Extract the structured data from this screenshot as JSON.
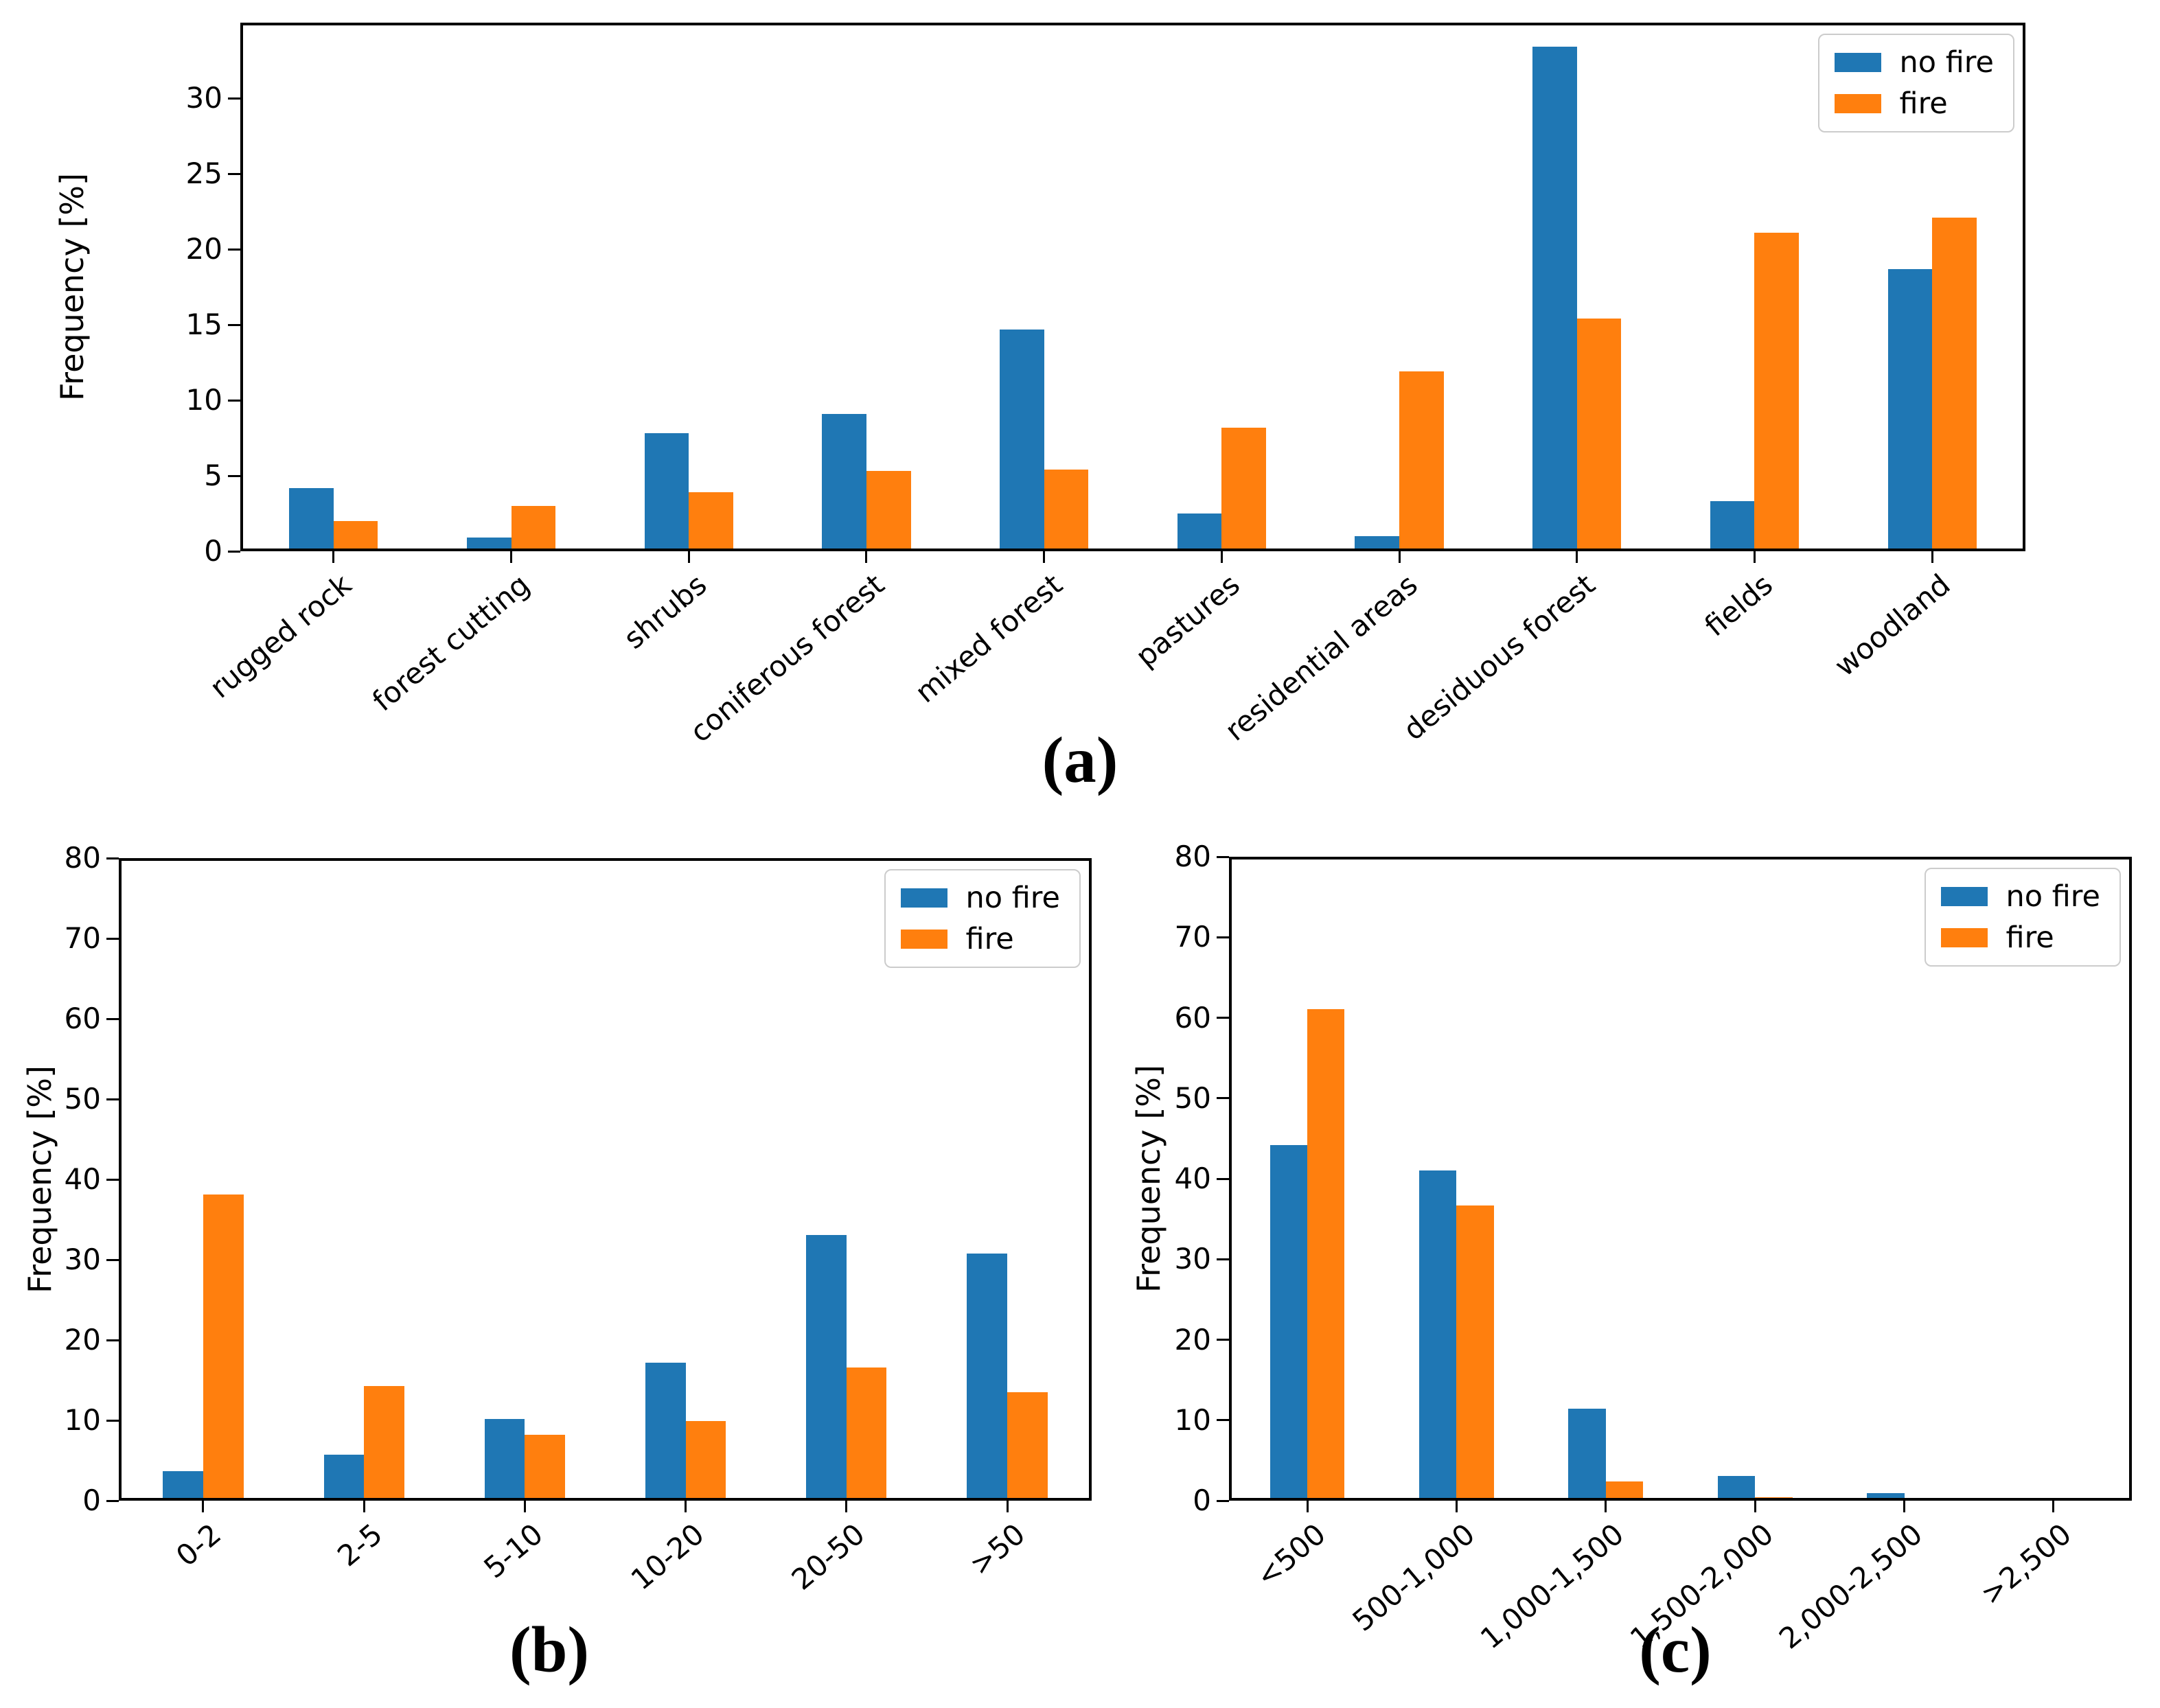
{
  "figure": {
    "background": "#ffffff",
    "colors": {
      "no_fire": "#1f77b4",
      "fire": "#ff7f0e"
    },
    "legend_labels": [
      "no fire",
      "fire"
    ]
  },
  "captions": {
    "a": "(a)",
    "b": "(b)",
    "c": "(c)"
  },
  "chart_data": [
    {
      "id": "a",
      "type": "bar",
      "title": "",
      "xlabel": "",
      "ylabel": "Frequency [%]",
      "ylim": [
        0,
        35
      ],
      "yticks": [
        0,
        5,
        10,
        15,
        20,
        25,
        30
      ],
      "grid": false,
      "legend_position": "top-right",
      "categories": [
        "rugged rock",
        "forest cutting",
        "shrubs",
        "coniferous forest",
        "mixed forest",
        "pastures",
        "residential areas",
        "desiduous forest",
        "fields",
        "woodland"
      ],
      "series": [
        {
          "name": "no fire",
          "color": "#1f77b4",
          "values": [
            4.2,
            0.9,
            7.8,
            9.1,
            14.7,
            2.5,
            1.0,
            33.4,
            3.3,
            18.7
          ]
        },
        {
          "name": "fire",
          "color": "#ff7f0e",
          "values": [
            2.0,
            3.0,
            3.9,
            5.3,
            5.4,
            8.2,
            11.9,
            15.4,
            21.1,
            22.1
          ]
        }
      ]
    },
    {
      "id": "b",
      "type": "bar",
      "title": "",
      "xlabel": "",
      "ylabel": "Frequency [%]",
      "ylim": [
        0,
        80
      ],
      "yticks": [
        0,
        10,
        20,
        30,
        40,
        50,
        60,
        70,
        80
      ],
      "grid": false,
      "legend_position": "top-right",
      "categories": [
        "0-2",
        "2-5",
        "5-10",
        "10-20",
        "20-50",
        ">50"
      ],
      "series": [
        {
          "name": "no fire",
          "color": "#1f77b4",
          "values": [
            3.7,
            5.7,
            10.2,
            17.2,
            33.1,
            30.8
          ]
        },
        {
          "name": "fire",
          "color": "#ff7f0e",
          "values": [
            38.1,
            14.3,
            8.2,
            9.9,
            16.6,
            13.5
          ]
        }
      ]
    },
    {
      "id": "c",
      "type": "bar",
      "title": "",
      "xlabel": "",
      "ylabel": "Frequency [%]",
      "ylim": [
        0,
        80
      ],
      "yticks": [
        0,
        10,
        20,
        30,
        40,
        50,
        60,
        70,
        80
      ],
      "grid": false,
      "legend_position": "top-right",
      "categories": [
        "<500",
        "500-1,000",
        "1,000-1,500",
        "1,500-2,000",
        "2,000-2,500",
        ">2,500"
      ],
      "series": [
        {
          "name": "no fire",
          "color": "#1f77b4",
          "values": [
            44.2,
            41.0,
            11.4,
            3.1,
            0.9,
            0.0
          ]
        },
        {
          "name": "fire",
          "color": "#ff7f0e",
          "values": [
            61.1,
            36.7,
            2.4,
            0.4,
            0.0,
            0.0
          ]
        }
      ]
    }
  ]
}
